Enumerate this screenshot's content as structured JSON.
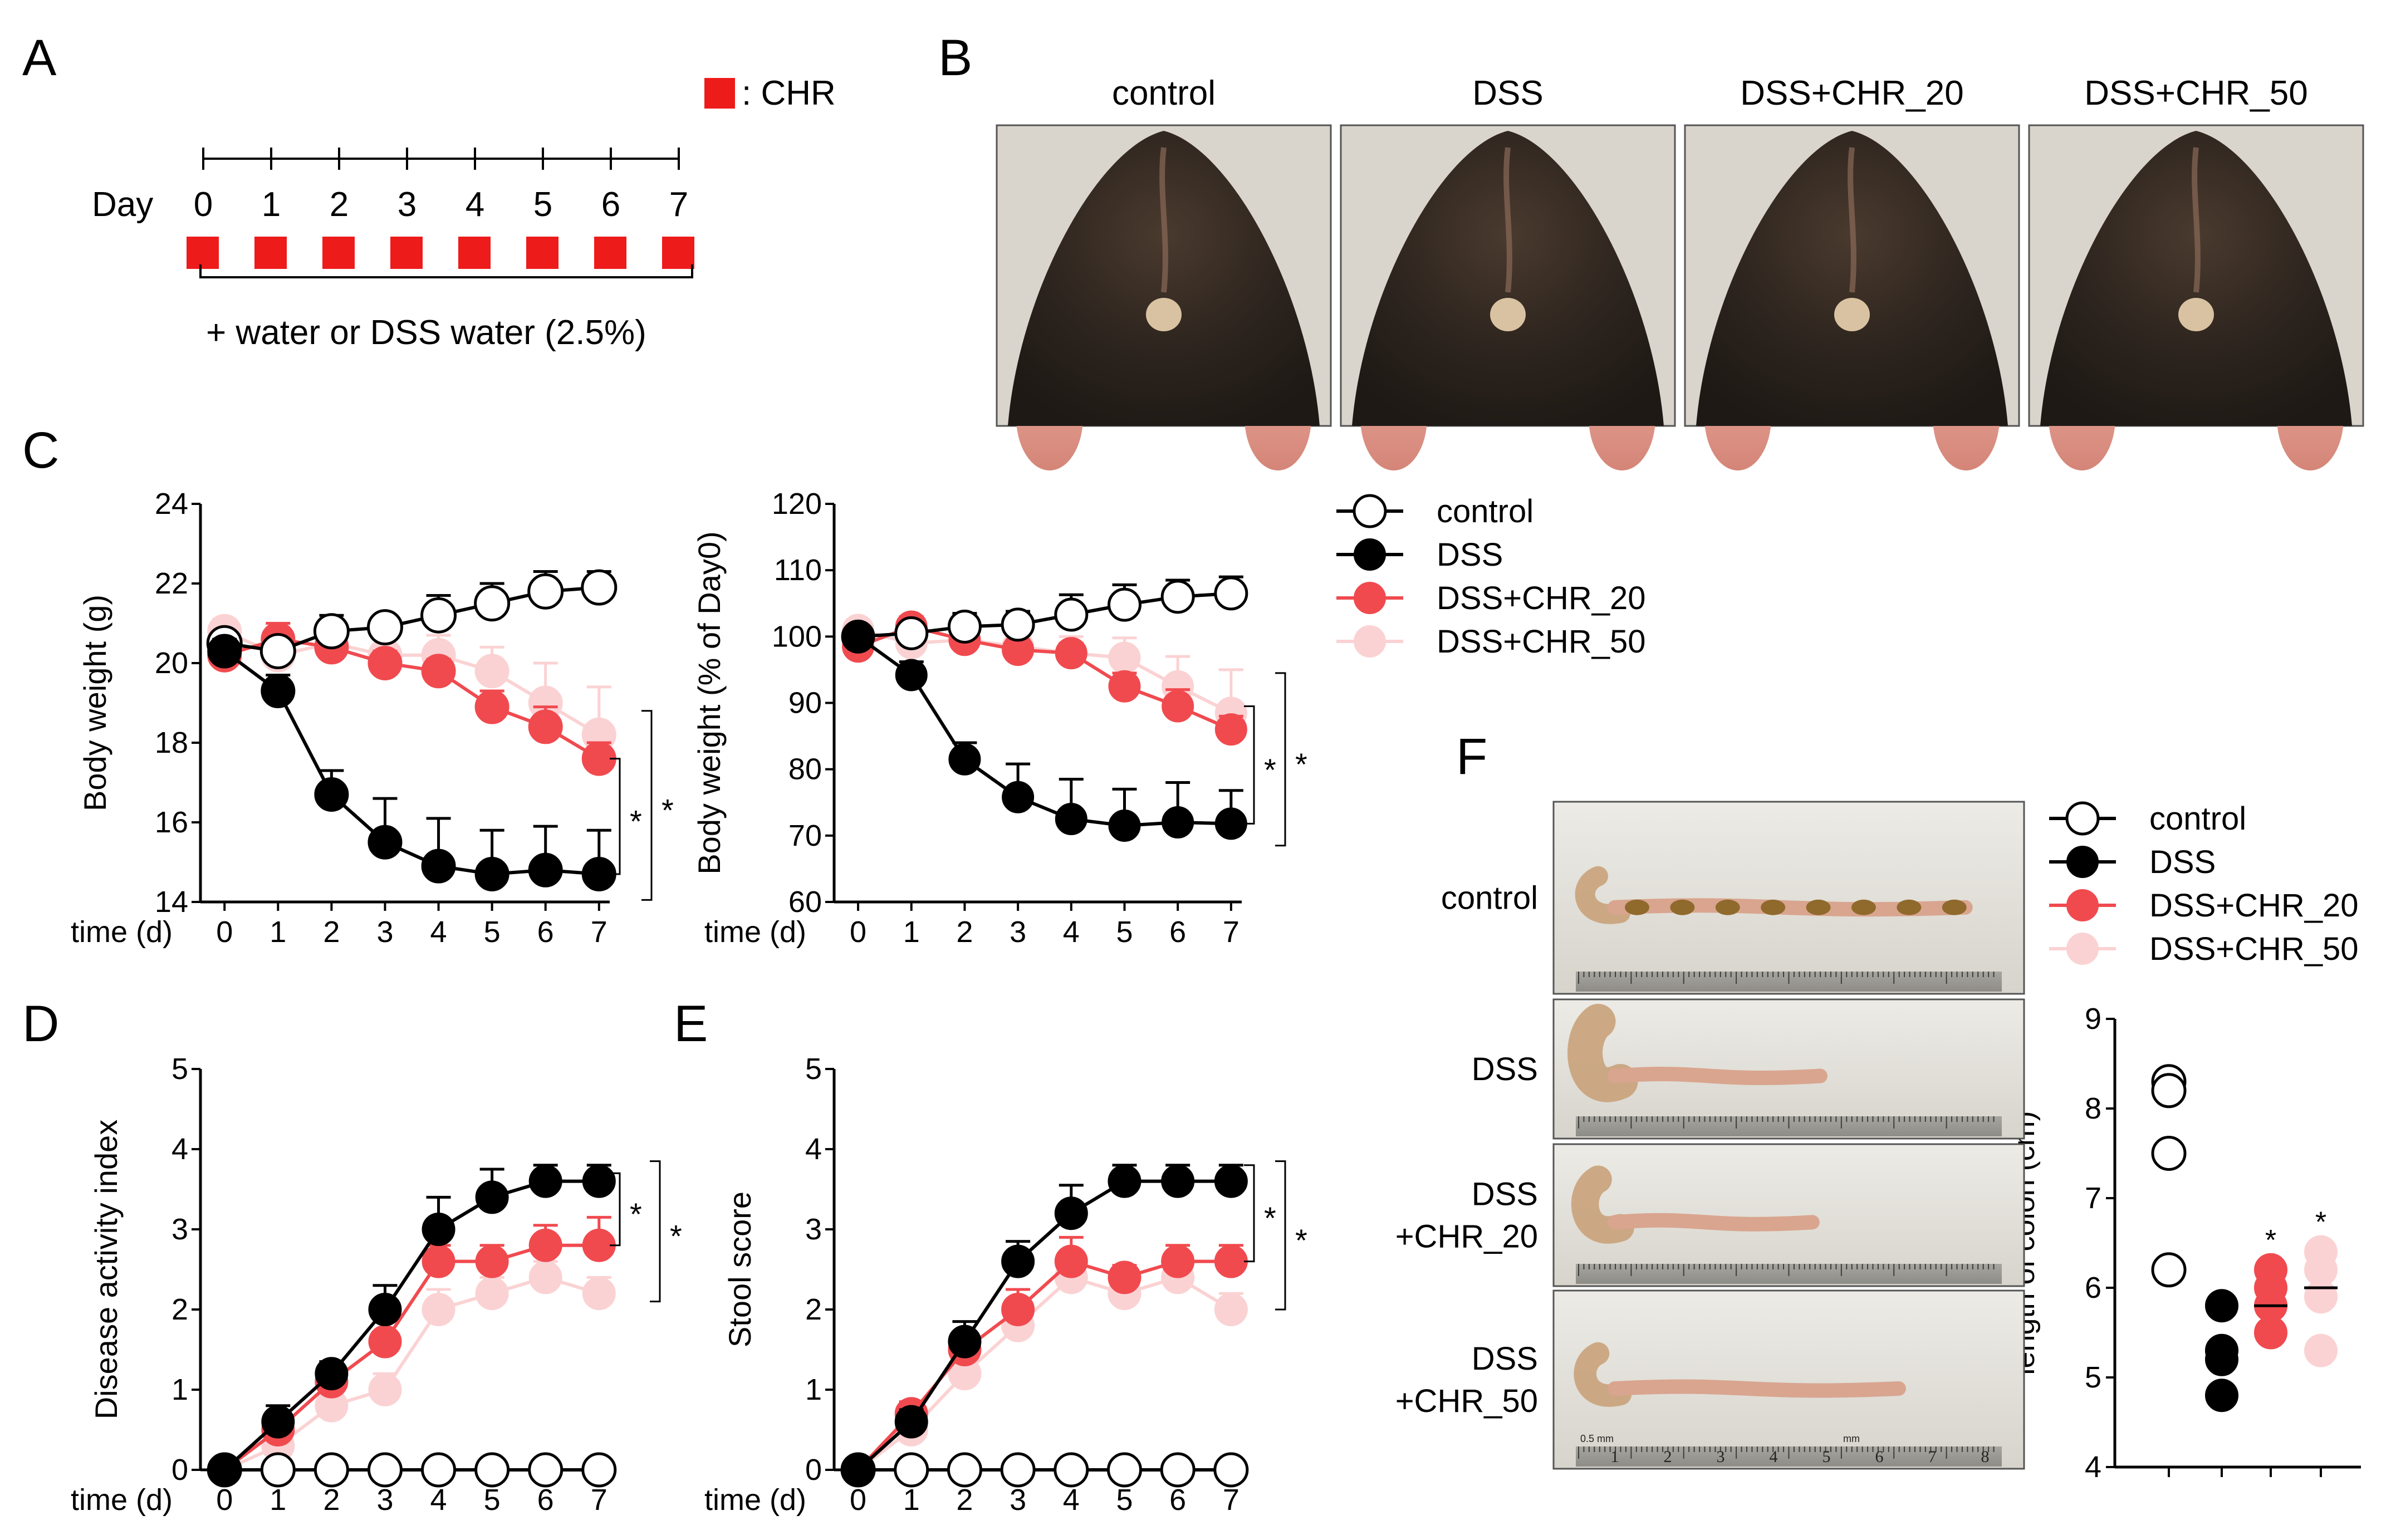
{
  "panel_labels": {
    "A": "A",
    "B": "B",
    "C": "C",
    "D": "D",
    "E": "E",
    "F": "F"
  },
  "colors": {
    "control": "#000000",
    "dss": "#000000",
    "chr20": "#f04a4f",
    "chr50": "#fbd2d3",
    "red_marker": "#ee1b1b",
    "photo_fur": "#2e2620",
    "photo_bg": "#d9d4cc",
    "tray": "#e4e1da"
  },
  "panel_a": {
    "legend_text": ": CHR",
    "day_label": "Day",
    "days": [
      "0",
      "1",
      "2",
      "3",
      "4",
      "5",
      "6",
      "7"
    ],
    "caption": "+ water or DSS water (2.5%)"
  },
  "panel_b": {
    "titles": [
      "control",
      "DSS",
      "DSS+CHR_20",
      "DSS+CHR_50"
    ]
  },
  "legend": [
    "control",
    "DSS",
    "DSS+CHR_20",
    "DSS+CHR_50"
  ],
  "chart_data": [
    {
      "id": "C-left",
      "type": "line",
      "ylabel": "Body weight (g)",
      "xlabel": "time (d)",
      "x": [
        0,
        1,
        2,
        3,
        4,
        5,
        6,
        7
      ],
      "xticks": [
        "0",
        "1",
        "2",
        "3",
        "4",
        "5",
        "6",
        "7"
      ],
      "ylim": [
        14,
        24
      ],
      "yticks": [
        "14",
        "16",
        "18",
        "20",
        "22",
        "24"
      ],
      "series": [
        {
          "name": "control",
          "values": [
            20.5,
            20.3,
            20.8,
            20.9,
            21.2,
            21.5,
            21.8,
            21.9
          ],
          "err": [
            0.3,
            0.3,
            0.4,
            0.3,
            0.5,
            0.5,
            0.5,
            0.4
          ],
          "style": "open"
        },
        {
          "name": "DSS",
          "values": [
            20.3,
            19.3,
            16.7,
            15.5,
            14.9,
            14.7,
            14.8,
            14.7
          ],
          "err": [
            0.3,
            0.4,
            0.6,
            1.1,
            1.2,
            1.1,
            1.1,
            1.1
          ],
          "style": "black"
        },
        {
          "name": "DSS+CHR_20",
          "values": [
            20.2,
            20.6,
            20.4,
            20.0,
            19.8,
            18.9,
            18.4,
            17.6
          ],
          "err": [
            0.3,
            0.4,
            0.3,
            0.3,
            0.3,
            0.4,
            0.5,
            0.4
          ],
          "style": "red"
        },
        {
          "name": "DSS+CHR_50",
          "values": [
            20.8,
            20.2,
            20.5,
            20.2,
            20.2,
            19.8,
            19.0,
            18.2
          ],
          "err": [
            0.3,
            0.4,
            0.4,
            0.4,
            0.5,
            0.6,
            1.0,
            1.2
          ],
          "style": "pink"
        }
      ],
      "sig": [
        "*",
        "*"
      ]
    },
    {
      "id": "C-right",
      "type": "line",
      "ylabel": "Body weight (% of Day0)",
      "xlabel": "time (d)",
      "x": [
        0,
        1,
        2,
        3,
        4,
        5,
        6,
        7
      ],
      "xticks": [
        "0",
        "1",
        "2",
        "3",
        "4",
        "5",
        "6",
        "7"
      ],
      "ylim": [
        60,
        120
      ],
      "yticks": [
        "60",
        "70",
        "80",
        "90",
        "100",
        "110",
        "120"
      ],
      "series": [
        {
          "name": "control",
          "values": [
            100,
            100.5,
            101.5,
            101.8,
            103.3,
            104.8,
            106,
            106.5
          ],
          "err": [
            1.5,
            1.5,
            2,
            2,
            3,
            3,
            2.5,
            2.5
          ],
          "style": "open"
        },
        {
          "name": "DSS",
          "values": [
            100,
            94.2,
            81.5,
            75.8,
            72.5,
            71.5,
            72,
            71.8
          ],
          "err": [
            1.5,
            2,
            2.5,
            5,
            6,
            5.5,
            6,
            5
          ],
          "style": "black"
        },
        {
          "name": "DSS+CHR_20",
          "values": [
            98.5,
            101.5,
            99.5,
            98,
            97.5,
            92.5,
            89.5,
            86
          ],
          "err": [
            1.5,
            1.5,
            1.5,
            1.5,
            1.5,
            2,
            2.5,
            2
          ],
          "style": "red"
        },
        {
          "name": "DSS+CHR_50",
          "values": [
            101,
            99,
            99.5,
            98.5,
            97.5,
            96.8,
            92.5,
            88.5
          ],
          "err": [
            1.5,
            2,
            2,
            2,
            2.5,
            3,
            4.5,
            6.5
          ],
          "style": "pink"
        }
      ],
      "sig": [
        "*",
        "*"
      ]
    },
    {
      "id": "D",
      "type": "line",
      "ylabel": "Disease activity index",
      "xlabel": "time (d)",
      "x": [
        0,
        1,
        2,
        3,
        4,
        5,
        6,
        7
      ],
      "xticks": [
        "0",
        "1",
        "2",
        "3",
        "4",
        "5",
        "6",
        "7"
      ],
      "ylim": [
        0,
        5
      ],
      "yticks": [
        "0",
        "1",
        "2",
        "3",
        "4",
        "5"
      ],
      "series": [
        {
          "name": "control",
          "values": [
            0,
            0,
            0,
            0,
            0,
            0,
            0,
            0
          ],
          "err": [
            0,
            0,
            0,
            0,
            0,
            0,
            0,
            0
          ],
          "style": "open"
        },
        {
          "name": "DSS",
          "values": [
            0,
            0.6,
            1.2,
            2.0,
            3.0,
            3.4,
            3.6,
            3.6
          ],
          "err": [
            0,
            0.2,
            0.15,
            0.3,
            0.4,
            0.35,
            0.2,
            0.2
          ],
          "style": "black"
        },
        {
          "name": "DSS+CHR_20",
          "values": [
            0,
            0.5,
            1.1,
            1.6,
            2.6,
            2.6,
            2.8,
            2.8
          ],
          "err": [
            0,
            0.15,
            0.2,
            0.3,
            0.2,
            0.2,
            0.25,
            0.35
          ],
          "style": "red"
        },
        {
          "name": "DSS+CHR_50",
          "values": [
            0,
            0.3,
            0.8,
            1.0,
            2.0,
            2.2,
            2.4,
            2.2
          ],
          "err": [
            0,
            0.1,
            0.15,
            0.2,
            0.25,
            0.2,
            0.2,
            0.2
          ],
          "style": "pink"
        }
      ],
      "sig": [
        "*",
        "*"
      ]
    },
    {
      "id": "E",
      "type": "line",
      "ylabel": "Stool score",
      "xlabel": "time (d)",
      "x": [
        0,
        1,
        2,
        3,
        4,
        5,
        6,
        7
      ],
      "xticks": [
        "0",
        "1",
        "2",
        "3",
        "4",
        "5",
        "6",
        "7"
      ],
      "ylim": [
        0,
        5
      ],
      "yticks": [
        "0",
        "1",
        "2",
        "3",
        "4",
        "5"
      ],
      "series": [
        {
          "name": "control",
          "values": [
            0,
            0,
            0,
            0,
            0,
            0,
            0,
            0
          ],
          "err": [
            0,
            0,
            0,
            0,
            0,
            0,
            0,
            0
          ],
          "style": "open"
        },
        {
          "name": "DSS",
          "values": [
            0,
            0.6,
            1.6,
            2.6,
            3.2,
            3.6,
            3.6,
            3.6
          ],
          "err": [
            0,
            0.15,
            0.25,
            0.25,
            0.35,
            0.2,
            0.2,
            0.2
          ],
          "style": "black"
        },
        {
          "name": "DSS+CHR_20",
          "values": [
            0,
            0.7,
            1.5,
            2.0,
            2.6,
            2.4,
            2.6,
            2.6
          ],
          "err": [
            0,
            0.15,
            0.2,
            0.25,
            0.3,
            0.15,
            0.2,
            0.2
          ],
          "style": "red"
        },
        {
          "name": "DSS+CHR_50",
          "values": [
            0,
            0.5,
            1.2,
            1.8,
            2.4,
            2.2,
            2.4,
            2.0
          ],
          "err": [
            0,
            0.15,
            0.2,
            0.2,
            0.2,
            0.2,
            0.2,
            0.2
          ],
          "style": "pink"
        }
      ],
      "sig": [
        "*",
        "*"
      ]
    },
    {
      "id": "F-scatter",
      "type": "scatter",
      "ylabel": "length of colon (cm)",
      "ylim": [
        4,
        9
      ],
      "yticks": [
        "4",
        "5",
        "6",
        "7",
        "8",
        "9"
      ],
      "groups": [
        {
          "name": "control",
          "values": [
            8.3,
            8.2,
            7.5,
            6.2
          ],
          "mean": null,
          "sig": "",
          "style": "open"
        },
        {
          "name": "DSS",
          "values": [
            5.8,
            5.3,
            5.2,
            4.8
          ],
          "mean": 5.3,
          "sig": "",
          "style": "black"
        },
        {
          "name": "DSS+CHR_20",
          "values": [
            6.2,
            6.0,
            5.8,
            5.5
          ],
          "mean": 5.8,
          "sig": "*",
          "style": "red"
        },
        {
          "name": "DSS+CHR_50",
          "values": [
            6.4,
            6.2,
            5.9,
            5.3
          ],
          "mean": 6.0,
          "sig": "*",
          "style": "pink"
        }
      ]
    }
  ],
  "panel_f": {
    "photo_labels": [
      [
        "control"
      ],
      [
        "DSS"
      ],
      [
        "DSS",
        "+CHR_20"
      ],
      [
        "DSS",
        "+CHR_50"
      ]
    ],
    "ruler_numbers": [
      "1",
      "2",
      "3",
      "4",
      "5",
      "6",
      "7",
      "8"
    ],
    "ruler_units": [
      "0.5 mm",
      "mm"
    ]
  }
}
